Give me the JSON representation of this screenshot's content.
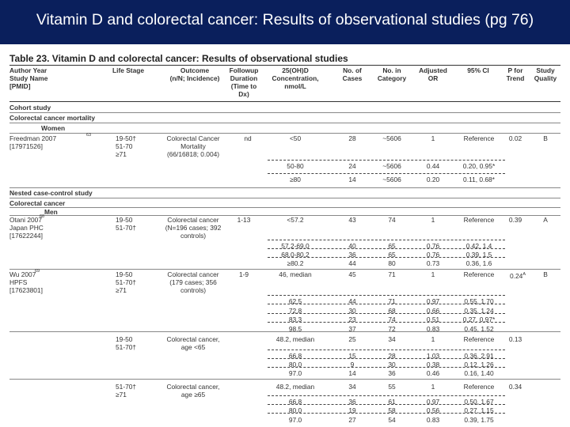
{
  "slide": {
    "title": "Vitamin D and colorectal cancer: Results of observational studies (pg 76)"
  },
  "table": {
    "title": "Table 23. Vitamin D and colorectal cancer: Results of observational studies",
    "headers": {
      "author": "Author Year\nStudy Name\n[PMID]",
      "life": "Life Stage",
      "outcome": "Outcome\n(n/N; Incidence)",
      "followup": "Followup\nDuration\n(Time to\nDx)",
      "ohd": "25(OH)D\nConcentration,\nnmol/L",
      "cases": "No. of\nCases",
      "category": "No. in\nCategory",
      "or": "Adjusted\nOR",
      "ci": "95% CI",
      "ptrend": "P for\nTrend",
      "quality": "Study\nQuality"
    },
    "sections": {
      "cohort": "Cohort study",
      "crc_mortality": "Colorectal cancer mortality",
      "women": "Women",
      "nested": "Nested case-control study",
      "crc": "Colorectal cancer",
      "men": "Men"
    },
    "studies": {
      "freedman": {
        "author": "Freedman 2007\n[17971526]",
        "ref": "63",
        "life": "19-50†\n51-70\n≥71",
        "outcome": "Colorectal Cancer\nMortality\n(66/16818; 0.004)",
        "followup": "nd",
        "ptrend": "0.02",
        "quality": "B"
      },
      "otani": {
        "author": "Otani 2007\nJapan PHC\n[17622244]",
        "ref": "68",
        "life": "19-50\n51-70†",
        "outcome": "Colorectal cancer\n(N=196 cases; 392\ncontrols)",
        "followup": "1-13",
        "ptrend": "0.39",
        "quality": "A"
      },
      "wu": {
        "author": "Wu 2007\nHPFS\n[17623801]",
        "ref": "69",
        "life": "19-50\n51-70†\n≥71",
        "outcome": "Colorectal cancer\n(179 cases; 356\ncontrols)",
        "followup": "1-9",
        "ptrend": "0.24",
        "ptrend_sup": "A",
        "quality": "B"
      },
      "wu_young": {
        "life": "19-50\n51-70†",
        "outcome": "Colorectal cancer,\nage <65",
        "ptrend": "0.13"
      },
      "wu_old": {
        "life": "51-70†\n≥71",
        "outcome": "Colorectal cancer,\nage ≥65",
        "ptrend": "0.34"
      }
    },
    "rows": [
      {
        "ohd": "<50",
        "cases": "28",
        "cat": "~5606",
        "or": "1",
        "ci": "Reference"
      },
      {
        "ohd": "50-80",
        "cases": "24",
        "cat": "~5606",
        "or": "0.44",
        "ci": "0.20, 0.95*"
      },
      {
        "ohd": "≥80",
        "cases": "14",
        "cat": "~5606",
        "or": "0.20",
        "ci": "0.11, 0.68*"
      },
      {
        "ohd": "<57.2",
        "cases": "43",
        "cat": "74",
        "or": "1",
        "ci": "Reference"
      },
      {
        "ohd": "57.2-69.0",
        "cases": "40",
        "cat": "65",
        "or": "0.76",
        "ci": "0.42, 1.4"
      },
      {
        "ohd": "68.0-80.2",
        "cases": "36",
        "cat": "65",
        "or": "0.76",
        "ci": "0.39, 1.5"
      },
      {
        "ohd": "≥80.2",
        "cases": "44",
        "cat": "80",
        "or": "0.73",
        "ci": "0.36, 1.6"
      },
      {
        "ohd": "46, median",
        "cases": "45",
        "cat": "71",
        "or": "1",
        "ci": "Reference"
      },
      {
        "ohd": "62.5",
        "cases": "44",
        "cat": "71",
        "or": "0.97",
        "ci": "0.55, 1.70"
      },
      {
        "ohd": "72.8",
        "cases": "30",
        "cat": "68",
        "or": "0.66",
        "ci": "0.35, 1.24"
      },
      {
        "ohd": "83.3",
        "cases": "23",
        "cat": "74",
        "or": "0.51",
        "ci": "0.27, 0.97*"
      },
      {
        "ohd": "98.5",
        "cases": "37",
        "cat": "72",
        "or": "0.83",
        "ci": "0.45, 1.52"
      },
      {
        "ohd": "48.2, median",
        "cases": "25",
        "cat": "34",
        "or": "1",
        "ci": "Reference"
      },
      {
        "ohd": "66.8",
        "cases": "15",
        "cat": "28",
        "or": "1.03",
        "ci": "0.36, 2.91"
      },
      {
        "ohd": "80.0",
        "cases": "9",
        "cat": "30",
        "or": "0.38",
        "ci": "0.12, 1.26"
      },
      {
        "ohd": "97.0",
        "cases": "14",
        "cat": "36",
        "or": "0.46",
        "ci": "0.16, 1.40"
      },
      {
        "ohd": "48.2, median",
        "cases": "34",
        "cat": "55",
        "or": "1",
        "ci": "Reference"
      },
      {
        "ohd": "66.8",
        "cases": "36",
        "cat": "61",
        "or": "0.97",
        "ci": "0.50, 1.67"
      },
      {
        "ohd": "80.0",
        "cases": "19",
        "cat": "58",
        "or": "0.56",
        "ci": "0.27, 1.15"
      },
      {
        "ohd": "97.0",
        "cases": "27",
        "cat": "54",
        "or": "0.83",
        "ci": "0.39, 1.75"
      }
    ]
  }
}
